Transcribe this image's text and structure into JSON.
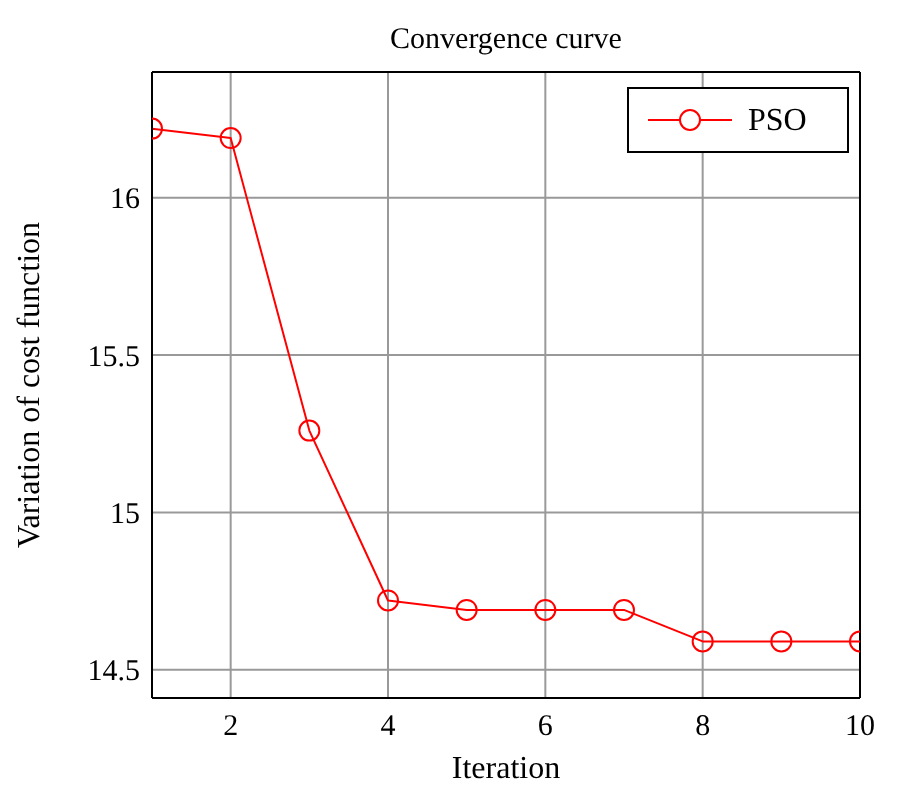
{
  "chart_data": {
    "type": "line",
    "title": "Convergence curve",
    "xlabel": "Iteration",
    "ylabel": "Variation of cost function",
    "x": [
      1,
      2,
      3,
      4,
      5,
      6,
      7,
      8,
      9,
      10
    ],
    "series": [
      {
        "name": "PSO",
        "color": "#ff0000",
        "values": [
          16.22,
          16.19,
          15.26,
          14.72,
          14.69,
          14.69,
          14.69,
          14.59,
          14.59,
          14.59
        ]
      }
    ],
    "xlim": [
      1,
      10
    ],
    "xticks": [
      2,
      4,
      6,
      8,
      10
    ],
    "ylim": [
      14.41,
      16.4
    ],
    "yticks": [
      14.5,
      15,
      15.5,
      16
    ],
    "grid": true,
    "legend": "top right",
    "marker": "circle",
    "line_style": "solid"
  }
}
